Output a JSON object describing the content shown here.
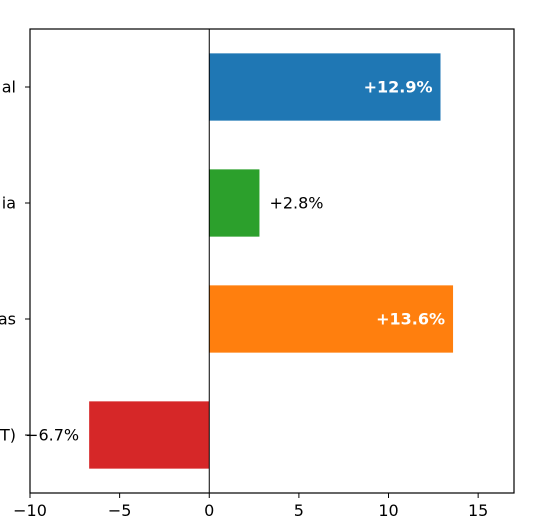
{
  "chart_data": {
    "type": "bar",
    "orientation": "horizontal",
    "title": "",
    "xlabel": "",
    "ylabel": "",
    "xlim": [
      -10,
      17
    ],
    "x_ticks": [
      -10,
      -5,
      0,
      5,
      10,
      15
    ],
    "x_tick_labels": [
      "−10",
      "−5",
      "0",
      "5",
      "10",
      "15"
    ],
    "grid": false,
    "zero_line": true,
    "categories": [
      "al",
      "ia",
      "as",
      "T)"
    ],
    "values": [
      12.9,
      2.8,
      13.6,
      -6.7
    ],
    "labels": [
      "+12.9%",
      "+2.8%",
      "+13.6%",
      "−6.7%"
    ],
    "label_inside": [
      true,
      false,
      true,
      false
    ],
    "label_bold": [
      true,
      false,
      true,
      false
    ],
    "colors": [
      "#1f77b4",
      "#2ca02c",
      "#ff7f0e",
      "#d62728"
    ],
    "inside_label_color": "#ffffff",
    "outside_label_color": "#000000"
  }
}
